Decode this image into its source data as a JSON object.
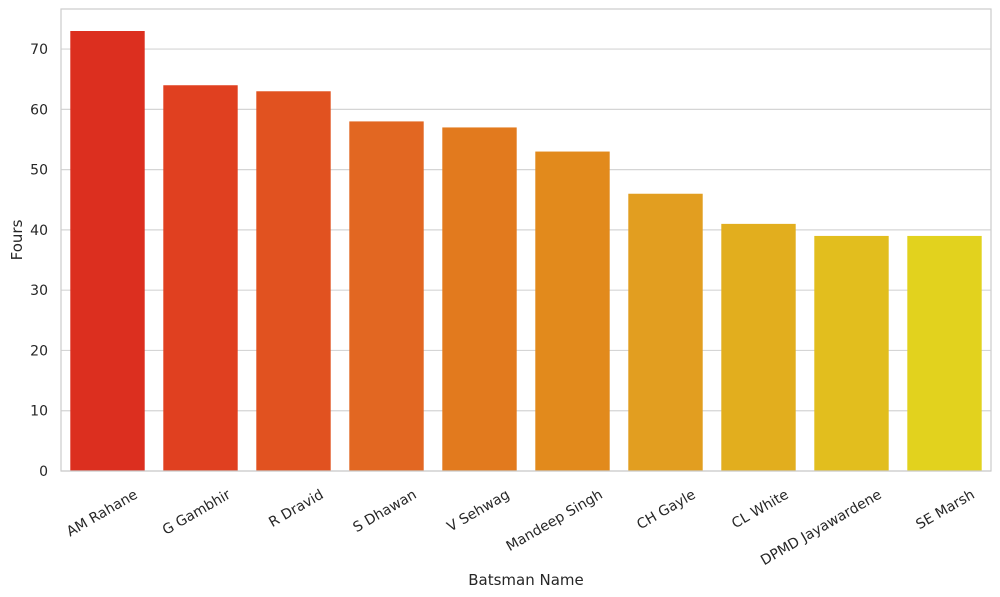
{
  "chart_data": {
    "type": "bar",
    "xlabel": "Batsman Name",
    "ylabel": "Fours",
    "categories": [
      "AM Rahane",
      "G Gambhir",
      "R Dravid",
      "S Dhawan",
      "V Sehwag",
      "Mandeep Singh",
      "CH Gayle",
      "CL White",
      "DPMD Jayawardene",
      "SE Marsh"
    ],
    "values": [
      73,
      64,
      63,
      58,
      57,
      53,
      46,
      41,
      39,
      39
    ],
    "colors": [
      "#dc2f1f",
      "#e04020",
      "#e15220",
      "#e26722",
      "#e27a1e",
      "#e28a1c",
      "#e29e20",
      "#e2ae1e",
      "#e2be1e",
      "#e2d21e"
    ],
    "ylim": [
      0,
      76.65
    ],
    "yticks": [
      0,
      10,
      20,
      30,
      40,
      50,
      60,
      70
    ],
    "grid": true,
    "legend": "none"
  }
}
